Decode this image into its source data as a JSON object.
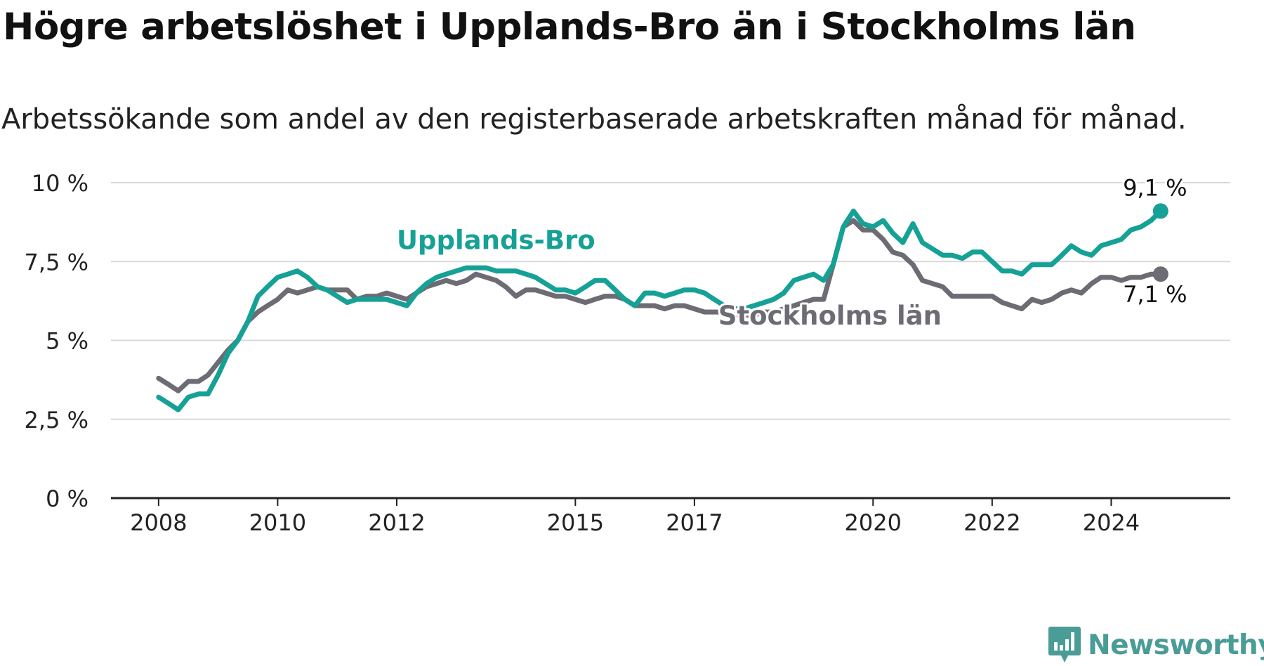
{
  "title": "Högre arbetslöshet i Upplands-Bro än i Stockholms län",
  "subtitle": "Arbetssökande som andel av den registerbaserade arbetskraften månad för månad.",
  "brand": {
    "name": "Newsworthy",
    "color": "#4a9c97",
    "icon": "newsworthy-logo-icon"
  },
  "chart_data": {
    "type": "line",
    "title": "Högre arbetslöshet i Upplands-Bro än i Stockholms län",
    "subtitle": "Arbetssökande som andel av den registerbaserade arbetskraften månad för månad.",
    "xlabel": "",
    "ylabel": "",
    "xlim": [
      2007.2,
      2026.0
    ],
    "ylim": [
      0,
      10
    ],
    "x_ticks": [
      2008,
      2010,
      2012,
      2015,
      2017,
      2020,
      2022,
      2024
    ],
    "y_ticks": [
      0,
      2.5,
      5,
      7.5,
      10
    ],
    "y_tick_labels": [
      "0 %",
      "2,5 %",
      "5 %",
      "7,5 %",
      "10 %"
    ],
    "grid": "horizontal",
    "legend": "direct labels on lines",
    "series": [
      {
        "name": "Upplands-Bro",
        "color": "#16a196",
        "label_at": [
          2012.0,
          7.9
        ],
        "end_label": "9,1 %",
        "x": [
          2008.0,
          2008.17,
          2008.33,
          2008.5,
          2008.67,
          2008.83,
          2009.0,
          2009.17,
          2009.33,
          2009.5,
          2009.67,
          2009.83,
          2010.0,
          2010.17,
          2010.33,
          2010.5,
          2010.67,
          2010.83,
          2011.0,
          2011.17,
          2011.33,
          2011.5,
          2011.67,
          2011.83,
          2012.0,
          2012.17,
          2012.33,
          2012.5,
          2012.67,
          2012.83,
          2013.0,
          2013.17,
          2013.33,
          2013.5,
          2013.67,
          2013.83,
          2014.0,
          2014.17,
          2014.33,
          2014.5,
          2014.67,
          2014.83,
          2015.0,
          2015.17,
          2015.33,
          2015.5,
          2015.67,
          2015.83,
          2016.0,
          2016.17,
          2016.33,
          2016.5,
          2016.67,
          2016.83,
          2017.0,
          2017.17,
          2017.33,
          2017.5,
          2017.67,
          2017.83,
          2018.0,
          2018.17,
          2018.33,
          2018.5,
          2018.67,
          2018.83,
          2019.0,
          2019.17,
          2019.33,
          2019.5,
          2019.67,
          2019.83,
          2020.0,
          2020.17,
          2020.33,
          2020.5,
          2020.67,
          2020.83,
          2021.0,
          2021.17,
          2021.33,
          2021.5,
          2021.67,
          2021.83,
          2022.0,
          2022.17,
          2022.33,
          2022.5,
          2022.67,
          2022.83,
          2023.0,
          2023.17,
          2023.33,
          2023.5,
          2023.67,
          2023.83,
          2024.0,
          2024.17,
          2024.33,
          2024.5,
          2024.67,
          2024.83
        ],
        "values": [
          3.2,
          3.0,
          2.8,
          3.2,
          3.3,
          3.3,
          3.9,
          4.6,
          5.0,
          5.6,
          6.4,
          6.7,
          7.0,
          7.1,
          7.2,
          7.0,
          6.7,
          6.6,
          6.4,
          6.2,
          6.3,
          6.3,
          6.3,
          6.3,
          6.2,
          6.1,
          6.5,
          6.8,
          7.0,
          7.1,
          7.2,
          7.3,
          7.3,
          7.3,
          7.2,
          7.2,
          7.2,
          7.1,
          7.0,
          6.8,
          6.6,
          6.6,
          6.5,
          6.7,
          6.9,
          6.9,
          6.6,
          6.3,
          6.1,
          6.5,
          6.5,
          6.4,
          6.5,
          6.6,
          6.6,
          6.5,
          6.3,
          6.1,
          6.0,
          6.0,
          6.1,
          6.2,
          6.3,
          6.5,
          6.9,
          7.0,
          7.1,
          6.9,
          7.4,
          8.6,
          9.1,
          8.7,
          8.6,
          8.8,
          8.4,
          8.1,
          8.7,
          8.1,
          7.9,
          7.7,
          7.7,
          7.6,
          7.8,
          7.8,
          7.5,
          7.2,
          7.2,
          7.1,
          7.4,
          7.4,
          7.4,
          7.7,
          8.0,
          7.8,
          7.7,
          8.0,
          8.1,
          8.2,
          8.5,
          8.6,
          8.8,
          9.1
        ]
      },
      {
        "name": "Stockholms län",
        "color": "#6d6b73",
        "label_at": [
          2017.4,
          5.5
        ],
        "end_label": "7,1 %",
        "x": [
          2008.0,
          2008.17,
          2008.33,
          2008.5,
          2008.67,
          2008.83,
          2009.0,
          2009.17,
          2009.33,
          2009.5,
          2009.67,
          2009.83,
          2010.0,
          2010.17,
          2010.33,
          2010.5,
          2010.67,
          2010.83,
          2011.0,
          2011.17,
          2011.33,
          2011.5,
          2011.67,
          2011.83,
          2012.0,
          2012.17,
          2012.33,
          2012.5,
          2012.67,
          2012.83,
          2013.0,
          2013.17,
          2013.33,
          2013.5,
          2013.67,
          2013.83,
          2014.0,
          2014.17,
          2014.33,
          2014.5,
          2014.67,
          2014.83,
          2015.0,
          2015.17,
          2015.33,
          2015.5,
          2015.67,
          2015.83,
          2016.0,
          2016.17,
          2016.33,
          2016.5,
          2016.67,
          2016.83,
          2017.0,
          2017.17,
          2017.33,
          2017.5,
          2017.67,
          2017.83,
          2018.0,
          2018.17,
          2018.33,
          2018.5,
          2018.67,
          2018.83,
          2019.0,
          2019.17,
          2019.33,
          2019.5,
          2019.67,
          2019.83,
          2020.0,
          2020.17,
          2020.33,
          2020.5,
          2020.67,
          2020.83,
          2021.0,
          2021.17,
          2021.33,
          2021.5,
          2021.67,
          2021.83,
          2022.0,
          2022.17,
          2022.33,
          2022.5,
          2022.67,
          2022.83,
          2023.0,
          2023.17,
          2023.33,
          2023.5,
          2023.67,
          2023.83,
          2024.0,
          2024.17,
          2024.33,
          2024.5,
          2024.67,
          2024.83
        ],
        "values": [
          3.8,
          3.6,
          3.4,
          3.7,
          3.7,
          3.9,
          4.3,
          4.7,
          5.0,
          5.6,
          5.9,
          6.1,
          6.3,
          6.6,
          6.5,
          6.6,
          6.7,
          6.6,
          6.6,
          6.6,
          6.3,
          6.4,
          6.4,
          6.5,
          6.4,
          6.3,
          6.5,
          6.7,
          6.8,
          6.9,
          6.8,
          6.9,
          7.1,
          7.0,
          6.9,
          6.7,
          6.4,
          6.6,
          6.6,
          6.5,
          6.4,
          6.4,
          6.3,
          6.2,
          6.3,
          6.4,
          6.4,
          6.3,
          6.1,
          6.1,
          6.1,
          6.0,
          6.1,
          6.1,
          6.0,
          5.9,
          5.9,
          5.9,
          5.8,
          5.8,
          5.8,
          5.9,
          5.9,
          6.0,
          6.1,
          6.2,
          6.3,
          6.3,
          7.4,
          8.6,
          8.8,
          8.5,
          8.5,
          8.2,
          7.8,
          7.7,
          7.4,
          6.9,
          6.8,
          6.7,
          6.4,
          6.4,
          6.4,
          6.4,
          6.4,
          6.2,
          6.1,
          6.0,
          6.3,
          6.2,
          6.3,
          6.5,
          6.6,
          6.5,
          6.8,
          7.0,
          7.0,
          6.9,
          7.0,
          7.0,
          7.1,
          7.1
        ]
      }
    ]
  }
}
